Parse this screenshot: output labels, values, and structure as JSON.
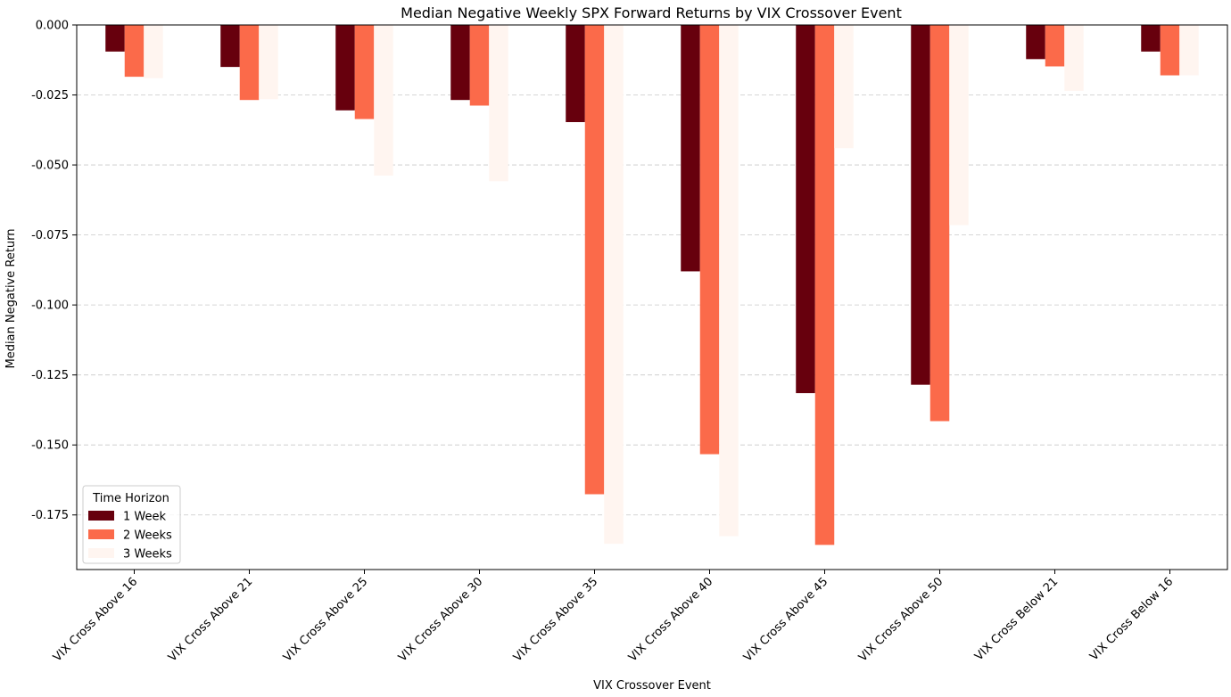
{
  "chart_data": {
    "type": "bar",
    "title": "Median Negative Weekly SPX Forward Returns by VIX Crossover Event",
    "xlabel": "VIX Crossover Event",
    "ylabel": "Median Negative Return",
    "categories": [
      "VIX Cross Above 16",
      "VIX Cross Above 21",
      "VIX Cross Above 25",
      "VIX Cross Above 30",
      "VIX Cross Above 35",
      "VIX Cross Above 40",
      "VIX Cross Above 45",
      "VIX Cross Above 50",
      "VIX Cross Below 21",
      "VIX Cross Below 16"
    ],
    "series": [
      {
        "name": "1 Week",
        "color": "#67000d",
        "values": [
          -0.0095,
          -0.015,
          -0.0305,
          -0.0268,
          -0.0347,
          -0.088,
          -0.1315,
          -0.1285,
          -0.0122,
          -0.0095
        ]
      },
      {
        "name": "2 Weeks",
        "color": "#fb6a4a",
        "values": [
          -0.0185,
          -0.0268,
          -0.0336,
          -0.0288,
          -0.1676,
          -0.1533,
          -0.1857,
          -0.1415,
          -0.0148,
          -0.018
        ]
      },
      {
        "name": "3 Weeks",
        "color": "#fff5f0",
        "values": [
          -0.019,
          -0.0265,
          -0.0538,
          -0.0558,
          -0.1853,
          -0.1826,
          -0.044,
          -0.0715,
          -0.0235,
          -0.018
        ]
      }
    ],
    "ylim": [
      -0.1945,
      0.0
    ],
    "yticks": [
      "0.000",
      "-0.025",
      "-0.050",
      "-0.075",
      "-0.100",
      "-0.125",
      "-0.150",
      "-0.175"
    ],
    "grid": "y, dashed",
    "legend": {
      "title": "Time Horizon",
      "position": "lower-left"
    }
  }
}
